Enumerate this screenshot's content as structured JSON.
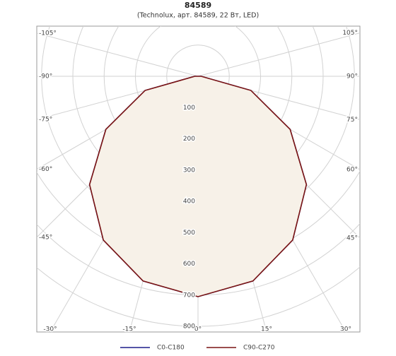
{
  "chart_data": {
    "type": "polar",
    "title": "84589",
    "subtitle": "(Technolux, арт. 84589, 22 Вт, LED)",
    "x": [
      -90,
      -75,
      -60,
      -45,
      -30,
      -15,
      0,
      15,
      30,
      45,
      60,
      75,
      90
    ],
    "series": [
      {
        "name": "C0-C180",
        "color": "#1c1c8a",
        "values": [
          10,
          175,
          340,
          490,
          605,
          678,
          705,
          678,
          605,
          490,
          340,
          175,
          10
        ]
      },
      {
        "name": "C90-C270",
        "color": "#7a1414",
        "values": [
          10,
          175,
          340,
          490,
          605,
          678,
          705,
          678,
          605,
          490,
          340,
          175,
          10
        ]
      }
    ],
    "rlim": [
      0,
      800
    ],
    "rticks": [
      100,
      200,
      300,
      400,
      500,
      600,
      700,
      800
    ],
    "angle_ticks": [
      {
        "value": -105,
        "label": "-105°"
      },
      {
        "value": -90,
        "label": "-90°"
      },
      {
        "value": -75,
        "label": "-75°"
      },
      {
        "value": -60,
        "label": "-60°"
      },
      {
        "value": -45,
        "label": "-45°"
      },
      {
        "value": -30,
        "label": "-30°"
      },
      {
        "value": -15,
        "label": "-15°"
      },
      {
        "value": 0,
        "label": "0°"
      },
      {
        "value": 15,
        "label": "15°"
      },
      {
        "value": 30,
        "label": "30°"
      },
      {
        "value": 45,
        "label": "45°"
      },
      {
        "value": 60,
        "label": "60°"
      },
      {
        "value": 75,
        "label": "75°"
      },
      {
        "value": 90,
        "label": "90°"
      },
      {
        "value": 105,
        "label": "105°"
      }
    ],
    "grid": true,
    "fill": "#f7f1e8",
    "legend": "bottom"
  }
}
